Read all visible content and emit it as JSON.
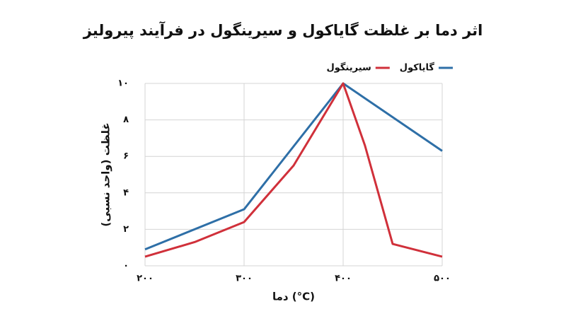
{
  "chart_data": {
    "type": "line",
    "title": "اثر دما بر غلظت گایاکول و سیرینگول در فرآیند پیرولیز",
    "xlabel": "دما (°C)",
    "ylabel": "غلظت (واحد نسبی)",
    "series": [
      {
        "name": "گایاکول",
        "color": "#2e6fa7",
        "x": [
          200,
          300,
          400,
          500
        ],
        "values": [
          0.9,
          3.1,
          10,
          6.3
        ]
      },
      {
        "name": "سیرینگول",
        "color": "#d0303a",
        "x": [
          200,
          250,
          300,
          350,
          400,
          422,
          450,
          500
        ],
        "values": [
          0.5,
          1.3,
          2.4,
          5.5,
          10,
          6.6,
          1.2,
          0.5
        ]
      }
    ],
    "xlim": [
      200,
      500
    ],
    "xticks": [
      {
        "value": 200,
        "label": "۲۰۰"
      },
      {
        "value": 300,
        "label": "۳۰۰"
      },
      {
        "value": 400,
        "label": "۴۰۰"
      },
      {
        "value": 500,
        "label": "۵۰۰"
      }
    ],
    "ylim": [
      0,
      10
    ],
    "yticks": [
      {
        "value": 0,
        "label": "۰"
      },
      {
        "value": 2,
        "label": "۲"
      },
      {
        "value": 4,
        "label": "۴"
      },
      {
        "value": 6,
        "label": "۶"
      },
      {
        "value": 8,
        "label": "۸"
      },
      {
        "value": 10,
        "label": "۱۰"
      }
    ],
    "grid": true,
    "legend": "top-right"
  }
}
